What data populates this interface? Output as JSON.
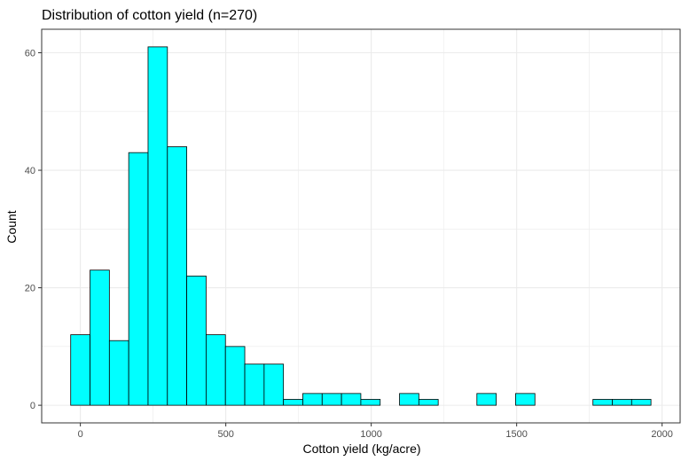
{
  "chart_data": {
    "type": "bar",
    "title": "Distribution of cotton yield (n=270)",
    "xlabel": "Cotton yield (kg/acre)",
    "ylabel": "Count",
    "bin_width": 66.5,
    "bins": [
      {
        "x": 0,
        "count": 12
      },
      {
        "x": 66.5,
        "count": 23
      },
      {
        "x": 133,
        "count": 11
      },
      {
        "x": 199.5,
        "count": 43
      },
      {
        "x": 266,
        "count": 61
      },
      {
        "x": 332.5,
        "count": 44
      },
      {
        "x": 399,
        "count": 22
      },
      {
        "x": 465.5,
        "count": 12
      },
      {
        "x": 532,
        "count": 10
      },
      {
        "x": 598.5,
        "count": 7
      },
      {
        "x": 665,
        "count": 7
      },
      {
        "x": 731.5,
        "count": 1
      },
      {
        "x": 798,
        "count": 2
      },
      {
        "x": 864.5,
        "count": 2
      },
      {
        "x": 931,
        "count": 2
      },
      {
        "x": 997.5,
        "count": 1
      },
      {
        "x": 1064,
        "count": 0
      },
      {
        "x": 1130.5,
        "count": 2
      },
      {
        "x": 1197,
        "count": 1
      },
      {
        "x": 1263.5,
        "count": 0
      },
      {
        "x": 1330,
        "count": 0
      },
      {
        "x": 1396.5,
        "count": 2
      },
      {
        "x": 1463,
        "count": 0
      },
      {
        "x": 1529.5,
        "count": 2
      },
      {
        "x": 1596,
        "count": 0
      },
      {
        "x": 1662.5,
        "count": 0
      },
      {
        "x": 1729,
        "count": 0
      },
      {
        "x": 1795.5,
        "count": 1
      },
      {
        "x": 1862,
        "count": 1
      },
      {
        "x": 1928.5,
        "count": 1
      }
    ],
    "xlim": [
      -133,
      2062
    ],
    "ylim": [
      -3,
      64
    ],
    "x_ticks": [
      0,
      500,
      1000,
      1500,
      2000
    ],
    "x_tick_labels": [
      "0",
      "500",
      "1000",
      "1500",
      "2000"
    ],
    "y_ticks": [
      0,
      20,
      40,
      60
    ],
    "y_tick_labels": [
      "0",
      "20",
      "40",
      "60"
    ],
    "bar_fill": "#00ffff",
    "bar_stroke": "#000000",
    "grid": true,
    "grid_color": "#ebebeb",
    "panel_border": "#333333"
  }
}
